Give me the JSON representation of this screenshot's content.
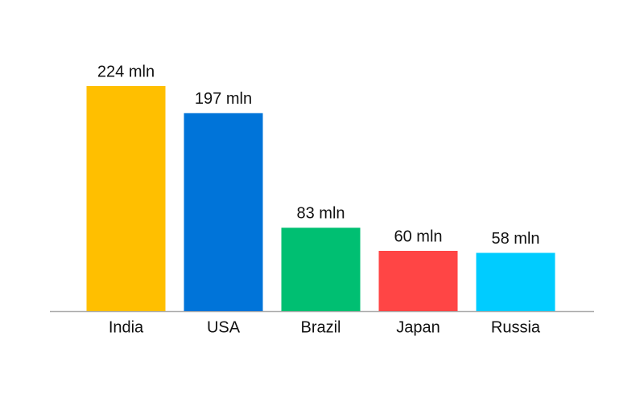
{
  "chart_data": {
    "type": "bar",
    "categories": [
      "India",
      "USA",
      "Brazil",
      "Japan",
      "Russia"
    ],
    "values": [
      224,
      197,
      83,
      60,
      58
    ],
    "value_labels": [
      "224 mln",
      "197 mln",
      "83 mln",
      "60 mln",
      "58 mln"
    ],
    "colors": [
      "#ffbf00",
      "#0074d9",
      "#00bf72",
      "#ff4545",
      "#00ccff"
    ]
  }
}
